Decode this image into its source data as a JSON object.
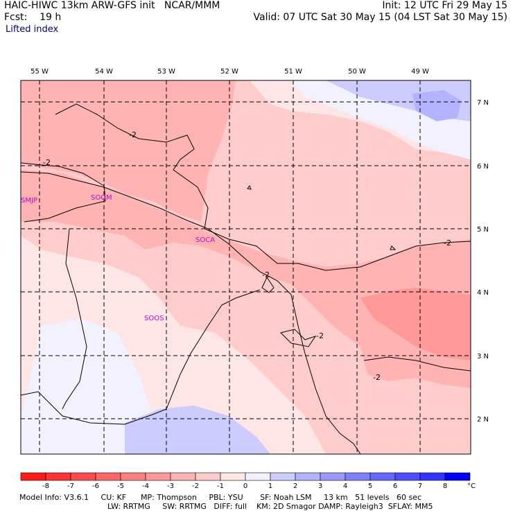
{
  "header": {
    "model_title": "HAIC-HIWC 13km ARW-GFS init",
    "org": "NCAR/MMM",
    "init": "Init: 12 UTC Fri 29 May 15",
    "fcst_label": "Fcst:",
    "fcst_value": "19 h",
    "valid": "Valid: 07 UTC Sat 30 May 15 (04 LST Sat 30 May 15)",
    "field": "Lifted index"
  },
  "map": {
    "lon_labels": [
      "55 W",
      "54 W",
      "53 W",
      "52 W",
      "51 W",
      "50 W",
      "49 W"
    ],
    "lat_labels": [
      "7 N",
      "6 N",
      "5 N",
      "4 N",
      "3 N",
      "2 N"
    ],
    "stations": [
      "SMJP",
      "SOGM",
      "SOCA",
      "SOOS"
    ],
    "contour_label": "-2"
  },
  "colorbar": {
    "unit": "°C",
    "ticks": [
      "-8",
      "-7",
      "-6",
      "-5",
      "-4",
      "-3",
      "-2",
      "-1",
      "0",
      "1",
      "2",
      "3",
      "4",
      "5",
      "6",
      "7",
      "8"
    ],
    "colors": [
      "#ff1a1a",
      "#ff3333",
      "#ff4d4d",
      "#ff6666",
      "#ff8080",
      "#ff9999",
      "#ffb3b3",
      "#ffcccc",
      "#ffe6e6",
      "#f2f2ff",
      "#ccccff",
      "#b3b3ff",
      "#9999ff",
      "#8080ff",
      "#6666ff",
      "#4d4dff",
      "#3333ff",
      "#0000ff"
    ]
  },
  "footer": {
    "line1": "Model Info: V3.6.1     CU: KF      MP: Thompson     PBL: YSU       SF: Noah LSM     13 km   51 levels   60 sec",
    "line2": "LW: RRTMG     SW: RRTMG   DIFF: full    KM: 2D Smagor DAMP: Rayleigh3  SFLAY: MM5"
  }
}
